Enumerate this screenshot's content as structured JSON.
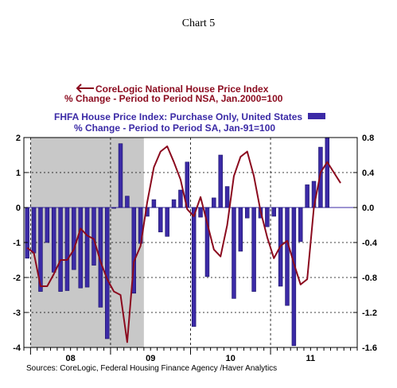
{
  "chart_data": {
    "type": "bar+line",
    "title": "Chart 5",
    "legend": {
      "line": {
        "name": "CoreLogic National House Price Index",
        "sub": "% Change - Period to Period     NSA, Jan.2000=100",
        "color": "#8b0a1e",
        "axis": "left"
      },
      "bar": {
        "name": "FHFA House Price Index: Purchase Only, United States",
        "sub": "% Change - Period to Period     SA, Jan-91=100",
        "color": "#3b2aa6",
        "axis": "right"
      }
    },
    "left_axis": {
      "min": -4,
      "max": 2,
      "ticks": [
        2,
        1,
        0,
        -1,
        -2,
        -3,
        -4
      ],
      "tick_labels": [
        "2",
        "1",
        "0",
        "-1",
        "-2",
        "-3",
        "-4"
      ]
    },
    "right_axis": {
      "min": -1.6,
      "max": 0.8,
      "ticks": [
        0.8,
        0.4,
        0.0,
        -0.4,
        -0.8,
        -1.2,
        -1.6
      ],
      "tick_labels": [
        "0.8",
        "0.4",
        "0.0",
        "-0.4",
        "-0.8",
        "-1.2",
        "-1.6"
      ]
    },
    "x_labels": [
      "08",
      "09",
      "10",
      "11"
    ],
    "recession_shading": {
      "from_month": 1,
      "to_month": 18
    },
    "bar_values": [
      -0.58,
      -0.52,
      -0.96,
      -0.4,
      -0.74,
      -0.96,
      -0.95,
      -0.71,
      -0.92,
      -0.91,
      -0.66,
      -1.14,
      -1.5,
      -0.01,
      0.73,
      0.13,
      -0.98,
      -0.41,
      -0.1,
      0.09,
      -0.28,
      -0.33,
      0.09,
      0.2,
      0.52,
      -1.36,
      -0.11,
      -0.79,
      0.11,
      0.6,
      0.24,
      -1.04,
      -0.5,
      -0.12,
      -0.96,
      -0.12,
      -0.22,
      -0.1,
      -0.9,
      -1.12,
      -1.58,
      -0.39,
      0.26,
      0.3,
      0.69,
      0.8
    ],
    "line_values": [
      -1.15,
      -1.3,
      -2.25,
      -2.25,
      -1.9,
      -1.5,
      -1.5,
      -1.2,
      -0.6,
      -0.8,
      -0.9,
      -1.55,
      -2.05,
      -2.4,
      -2.5,
      -3.85,
      -1.55,
      -1.1,
      0.15,
      1.15,
      1.6,
      1.75,
      1.3,
      0.8,
      -0.05,
      -0.25,
      0.3,
      -0.45,
      -1.2,
      -1.4,
      -0.5,
      0.9,
      1.45,
      1.6,
      0.9,
      -0.1,
      -0.85,
      -1.45,
      -1.1,
      -0.95,
      -1.6,
      -2.2,
      -2.05,
      0.0,
      1.0,
      1.3,
      1.0,
      0.7
    ],
    "sources": "Sources:  CoreLogic, Federal Housing Finance Agency /Haver Analytics"
  }
}
